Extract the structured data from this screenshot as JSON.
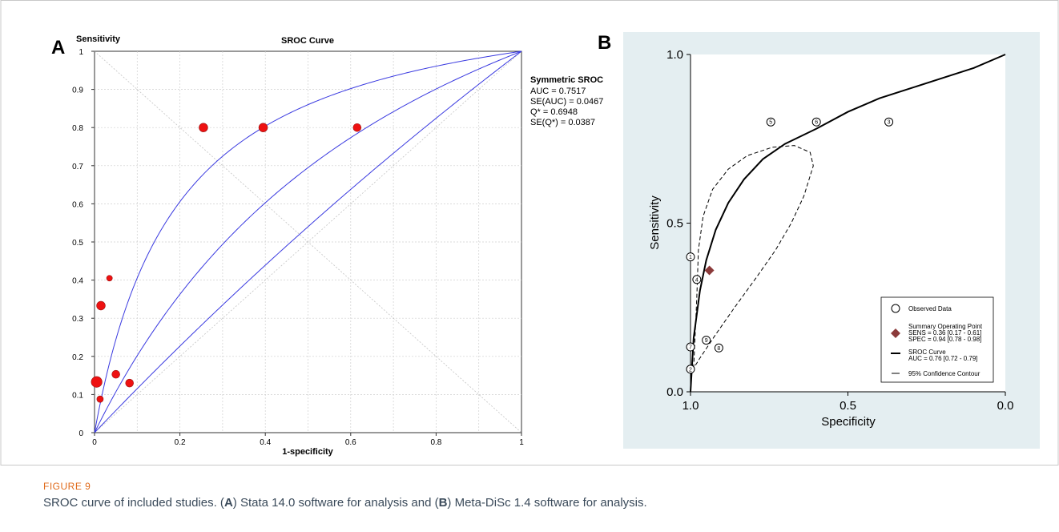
{
  "panels": {
    "a_label": "A",
    "b_label": "B"
  },
  "caption": {
    "figure_label": "FIGURE 9",
    "p1": "SROC curve of included studies. (",
    "a": "A",
    "p2": ") Stata 14.0 software for analysis and (",
    "b": "B",
    "p3": ") Meta-DiSc 1.4 software for analysis."
  },
  "colors": {
    "curve_blue": "#3a3ae0",
    "point_red": "#ee1111",
    "diamond": "#8b3a3a",
    "panel_b_bg": "#e4eef1",
    "caption_orange": "#e06a1a"
  },
  "chart_data": [
    {
      "type": "scatter",
      "title": "SROC Curve",
      "xlabel": "1-specificity",
      "ylabel": "Sensitivity",
      "xlim": [
        0,
        1
      ],
      "ylim": [
        0,
        1
      ],
      "xticks": [
        "0",
        "0.2",
        "0.4",
        "0.6",
        "0.8",
        "1"
      ],
      "yticks": [
        "0",
        "0.1",
        "0.2",
        "0.3",
        "0.4",
        "0.5",
        "0.6",
        "0.7",
        "0.8",
        "0.9",
        "1"
      ],
      "grid": true,
      "points": [
        {
          "x": 0.255,
          "y": 0.8,
          "size": 1.2
        },
        {
          "x": 0.395,
          "y": 0.8,
          "size": 1.2
        },
        {
          "x": 0.615,
          "y": 0.8,
          "size": 1.1
        },
        {
          "x": 0.035,
          "y": 0.405,
          "size": 0.8
        },
        {
          "x": 0.015,
          "y": 0.333,
          "size": 1.2
        },
        {
          "x": 0.005,
          "y": 0.133,
          "size": 1.5
        },
        {
          "x": 0.05,
          "y": 0.153,
          "size": 1.1
        },
        {
          "x": 0.082,
          "y": 0.13,
          "size": 1.1
        },
        {
          "x": 0.013,
          "y": 0.088,
          "size": 0.9
        }
      ],
      "curves": [
        {
          "kind": "sroc",
          "Q": 0.86
        },
        {
          "kind": "sroc",
          "Q": 0.6948
        },
        {
          "kind": "sroc",
          "Q": 0.54
        }
      ],
      "annotation": {
        "title": "Symmetric SROC",
        "lines": [
          "AUC = 0.7517",
          "SE(AUC) = 0.0467",
          "Q* = 0.6948",
          "SE(Q*) = 0.0387"
        ]
      }
    },
    {
      "type": "scatter",
      "title": "",
      "xlabel": "Specificity",
      "ylabel": "Sensitivity",
      "xlim": [
        1.0,
        0.0
      ],
      "ylim": [
        0.0,
        1.0
      ],
      "xticks": [
        "1.0",
        "0.5",
        "0.0"
      ],
      "yticks": [
        "0.0",
        "0.5",
        "1.0"
      ],
      "grid": false,
      "observed": [
        {
          "spec": 0.745,
          "sens": 0.8,
          "label": "5"
        },
        {
          "spec": 0.6,
          "sens": 0.8,
          "label": "6"
        },
        {
          "spec": 0.37,
          "sens": 0.8,
          "label": "3"
        },
        {
          "spec": 1.0,
          "sens": 0.4,
          "label": "1"
        },
        {
          "spec": 0.98,
          "sens": 0.333,
          "label": "4"
        },
        {
          "spec": 0.95,
          "sens": 0.153,
          "label": "9"
        },
        {
          "spec": 0.91,
          "sens": 0.13,
          "label": "8"
        },
        {
          "spec": 1.0,
          "sens": 0.133,
          "label": "7"
        },
        {
          "spec": 1.0,
          "sens": 0.067,
          "label": "2"
        }
      ],
      "summary_point": {
        "spec": 0.94,
        "sens": 0.36
      },
      "curve_points": [
        [
          1.0,
          0.0
        ],
        [
          0.99,
          0.16
        ],
        [
          0.97,
          0.3
        ],
        [
          0.95,
          0.39
        ],
        [
          0.92,
          0.48
        ],
        [
          0.88,
          0.56
        ],
        [
          0.83,
          0.63
        ],
        [
          0.77,
          0.69
        ],
        [
          0.7,
          0.735
        ],
        [
          0.6,
          0.78
        ],
        [
          0.5,
          0.83
        ],
        [
          0.4,
          0.87
        ],
        [
          0.3,
          0.9
        ],
        [
          0.2,
          0.93
        ],
        [
          0.1,
          0.96
        ],
        [
          0.0,
          1.0
        ]
      ],
      "contour_points": [
        [
          0.99,
          0.07
        ],
        [
          0.98,
          0.28
        ],
        [
          0.975,
          0.42
        ],
        [
          0.96,
          0.52
        ],
        [
          0.93,
          0.6
        ],
        [
          0.88,
          0.66
        ],
        [
          0.82,
          0.7
        ],
        [
          0.74,
          0.725
        ],
        [
          0.67,
          0.73
        ],
        [
          0.62,
          0.71
        ],
        [
          0.61,
          0.67
        ],
        [
          0.64,
          0.58
        ],
        [
          0.68,
          0.5
        ],
        [
          0.73,
          0.42
        ],
        [
          0.79,
          0.34
        ],
        [
          0.86,
          0.25
        ],
        [
          0.92,
          0.17
        ],
        [
          0.97,
          0.1
        ],
        [
          0.99,
          0.07
        ]
      ],
      "legend": {
        "position": "bottom-right",
        "observed": "Observed Data",
        "summary_title": "Summary Operating  Point",
        "summary_sens": "SENS = 0.36 [0.17 - 0.61]",
        "summary_spec": "SPEC = 0.94 [0.78 - 0.98]",
        "sroc_title": "SROC Curve",
        "sroc_auc": "AUC = 0.76 [0.72 - 0.79]",
        "contour": "95% Confidence Contour"
      }
    }
  ]
}
